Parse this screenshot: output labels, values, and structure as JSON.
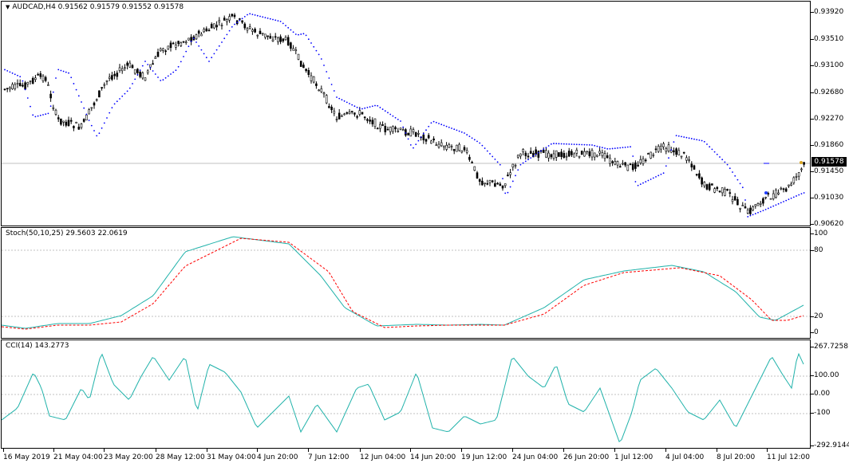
{
  "main": {
    "label": "AUDCAD,H4  0.91562 0.91579 0.91552 0.91578",
    "current_price": "0.91578",
    "price_levels": [
      "0.93920",
      "0.93510",
      "0.93100",
      "0.92680",
      "0.92270",
      "0.91860",
      "0.91450",
      "0.91030",
      "0.90620"
    ]
  },
  "stoch": {
    "label": "Stoch(50,10,25) 29.5603 22.0619",
    "levels": [
      "100",
      "80",
      "20",
      "0"
    ]
  },
  "cci": {
    "label": "CCI(14) 143.2773",
    "levels": [
      "267.7258",
      "100.00",
      "0.00",
      "-100",
      "-292.9144"
    ]
  },
  "time_axis": [
    "16 May 2019",
    "21 May 04:00",
    "23 May 20:00",
    "28 May 12:00",
    "31 May 04:00",
    "4 Jun 20:00",
    "7 Jun 12:00",
    "12 Jun 04:00",
    "14 Jun 20:00",
    "19 Jun 12:00",
    "24 Jun 04:00",
    "26 Jun 20:00",
    "1 Jul 12:00",
    "4 Jul 04:00",
    "8 Jul 20:00",
    "11 Jul 12:00"
  ],
  "colors": {
    "stoch_main": "#20b2aa",
    "stoch_signal": "#ff0000",
    "cci": "#20b2aa",
    "sar": "#0000ff",
    "candles": "#000000"
  }
}
